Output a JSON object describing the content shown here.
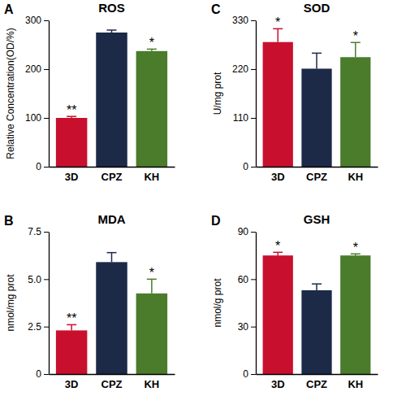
{
  "chart_data": [
    {
      "type": "bar",
      "label": "A",
      "title": "ROS",
      "y_label": "Relative Concentration(OD/%)",
      "categories": [
        "3D",
        "CPZ",
        "KH"
      ],
      "values": [
        100,
        275,
        237
      ],
      "errors": [
        3,
        5,
        4
      ],
      "colors": [
        "#c8102e",
        "#1c2a48",
        "#4a7c2c"
      ],
      "annotations": [
        "**",
        null,
        "*"
      ],
      "ylim": [
        0,
        300
      ],
      "yticks": [
        0,
        100,
        200,
        300
      ]
    },
    {
      "type": "bar",
      "label": "B",
      "title": "MDA",
      "y_label": "nmol/mg prot",
      "categories": [
        "3D",
        "CPZ",
        "KH"
      ],
      "values": [
        2.3,
        5.9,
        4.25
      ],
      "errors": [
        0.3,
        0.5,
        0.75
      ],
      "colors": [
        "#c8102e",
        "#1c2a48",
        "#4a7c2c"
      ],
      "annotations": [
        "**",
        null,
        "*"
      ],
      "ylim": [
        0,
        7.5
      ],
      "yticks": [
        0,
        2.5,
        {
          "value": 5,
          "label": "5.0"
        },
        7.5
      ]
    },
    {
      "type": "bar",
      "label": "C",
      "title": "SOD",
      "y_label": "U/mg prot",
      "categories": [
        "3D",
        "CPZ",
        "KH"
      ],
      "values": [
        281,
        221,
        247
      ],
      "errors": [
        30,
        35,
        33
      ],
      "colors": [
        "#c8102e",
        "#1c2a48",
        "#4a7c2c"
      ],
      "annotations": [
        "*",
        null,
        "*"
      ],
      "ylim": [
        0,
        330
      ],
      "yticks": [
        0,
        110,
        220,
        330
      ]
    },
    {
      "type": "bar",
      "label": "D",
      "title": "GSH",
      "y_label": "nmol/g prot",
      "categories": [
        "3D",
        "CPZ",
        "KH"
      ],
      "values": [
        75,
        53,
        75
      ],
      "errors": [
        2,
        4,
        1
      ],
      "colors": [
        "#c8102e",
        "#1c2a48",
        "#4a7c2c"
      ],
      "annotations": [
        "*",
        null,
        "*"
      ],
      "ylim": [
        0,
        90
      ],
      "yticks": [
        0,
        30,
        60,
        90
      ]
    }
  ]
}
